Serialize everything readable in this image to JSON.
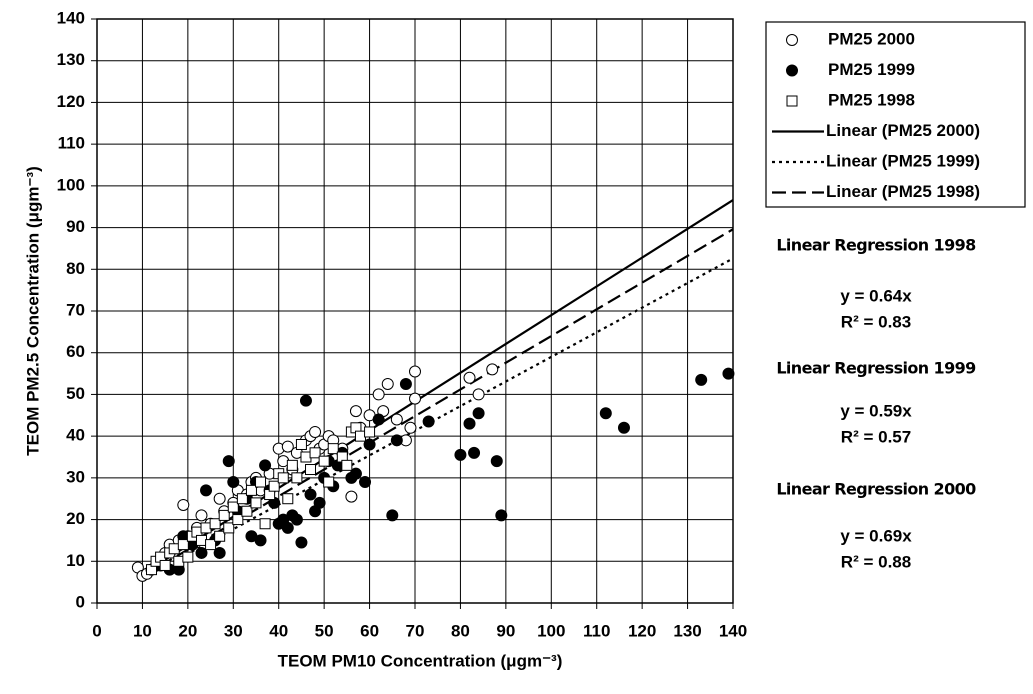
{
  "chart_data": {
    "type": "scatter",
    "x_label": "TEOM PM10 Concentration (μgm⁻³)",
    "y_label": "TEOM PM2.5 Concentration (μgm⁻³)",
    "xlim": [
      0,
      140
    ],
    "xticks": [
      0,
      10,
      20,
      30,
      40,
      50,
      60,
      70,
      80,
      90,
      100,
      110,
      120,
      130,
      140
    ],
    "ylim": [
      0,
      140
    ],
    "yticks": [
      0,
      10,
      20,
      30,
      40,
      50,
      60,
      70,
      80,
      90,
      100,
      110,
      120,
      130,
      140
    ],
    "grid": true,
    "legend": "upper right",
    "series": [
      {
        "name": "PM25 2000",
        "color": "#000000",
        "marker": "circle-open",
        "x": [
          9,
          10,
          11,
          13,
          15,
          16,
          18,
          19,
          20,
          22,
          23,
          25,
          27,
          28,
          30,
          31,
          33,
          34,
          35,
          36,
          38,
          40,
          41,
          42,
          43,
          44,
          46,
          47,
          48,
          49,
          50,
          51,
          52,
          54,
          56,
          57,
          58,
          60,
          62,
          63,
          64,
          66,
          68,
          69,
          70,
          70,
          82,
          84,
          87
        ],
        "values": [
          8.5,
          6.5,
          7,
          9,
          12,
          14,
          15,
          23.5,
          16,
          18,
          21,
          19,
          25,
          22,
          24,
          27,
          26,
          29,
          30,
          27,
          31,
          37,
          34,
          37.5,
          32,
          36,
          39,
          40,
          41,
          37,
          38,
          40,
          39,
          37,
          25.5,
          46,
          42,
          45,
          50,
          46,
          52.5,
          44,
          39,
          42,
          49,
          55.5,
          54,
          50,
          56
        ]
      },
      {
        "name": "PM25 1999",
        "color": "#000000",
        "marker": "circle-filled",
        "x": [
          12,
          14,
          16,
          18,
          19,
          21,
          23,
          24,
          26,
          27,
          29,
          30,
          31,
          33,
          34,
          35,
          36,
          37,
          38,
          39,
          40,
          41,
          42,
          43,
          44,
          45,
          46,
          47,
          48,
          49,
          50,
          51,
          52,
          53,
          54,
          56,
          57,
          59,
          60,
          62,
          65,
          66,
          68,
          73,
          80,
          82,
          83,
          84,
          88,
          89,
          112,
          116,
          133,
          139
        ],
        "values": [
          8,
          9,
          8,
          8,
          16,
          14,
          12,
          27,
          15,
          12,
          34,
          29,
          22,
          25,
          16,
          29,
          15,
          33,
          27,
          24,
          19,
          20,
          18,
          21,
          20,
          14.5,
          48.5,
          26,
          22,
          24,
          30,
          34,
          28,
          33,
          36,
          30,
          31,
          29,
          38,
          44,
          21,
          39,
          52.5,
          43.5,
          35.5,
          43,
          36,
          45.5,
          34,
          21,
          45.5,
          42,
          53.5,
          55
        ]
      },
      {
        "name": "PM25 1998",
        "color": "#000000",
        "marker": "square-open",
        "x": [
          12,
          13,
          14,
          15,
          16,
          17,
          18,
          19,
          20,
          21,
          22,
          23,
          24,
          25,
          26,
          27,
          28,
          29,
          30,
          31,
          32,
          33,
          34,
          35,
          36,
          37,
          38,
          39,
          40,
          41,
          42,
          43,
          44,
          45,
          46,
          47,
          48,
          50,
          51,
          52,
          54,
          55,
          56,
          57,
          58,
          60
        ],
        "values": [
          8,
          10,
          11,
          9,
          12,
          13,
          10,
          14,
          11,
          16,
          17,
          15,
          18,
          14,
          19,
          16,
          21,
          18,
          23,
          20,
          25,
          22,
          27,
          24,
          29,
          19,
          26,
          28,
          31,
          30,
          25,
          33,
          30,
          38,
          35,
          32,
          36,
          34,
          29,
          37,
          35,
          33,
          41,
          42,
          40,
          41
        ]
      }
    ],
    "trendlines": [
      {
        "name": "Linear (PM25 2000)",
        "slope": 0.69,
        "x_range": [
          10,
          140
        ],
        "style": "solid"
      },
      {
        "name": "Linear (PM25 1999)",
        "slope": 0.59,
        "x_range": [
          10,
          140
        ],
        "style": "dotted"
      },
      {
        "name": "Linear (PM25 1998)",
        "slope": 0.64,
        "x_range": [
          10,
          140
        ],
        "style": "dashed"
      }
    ],
    "annotations": [
      "Linear Regression 1998",
      "y = 0.64x",
      "R² = 0.83",
      "Linear Regression 1999",
      "y = 0.59x",
      "R² = 0.57",
      "Linear Regression 2000",
      "y = 0.69x",
      "R² = 0.88"
    ]
  }
}
